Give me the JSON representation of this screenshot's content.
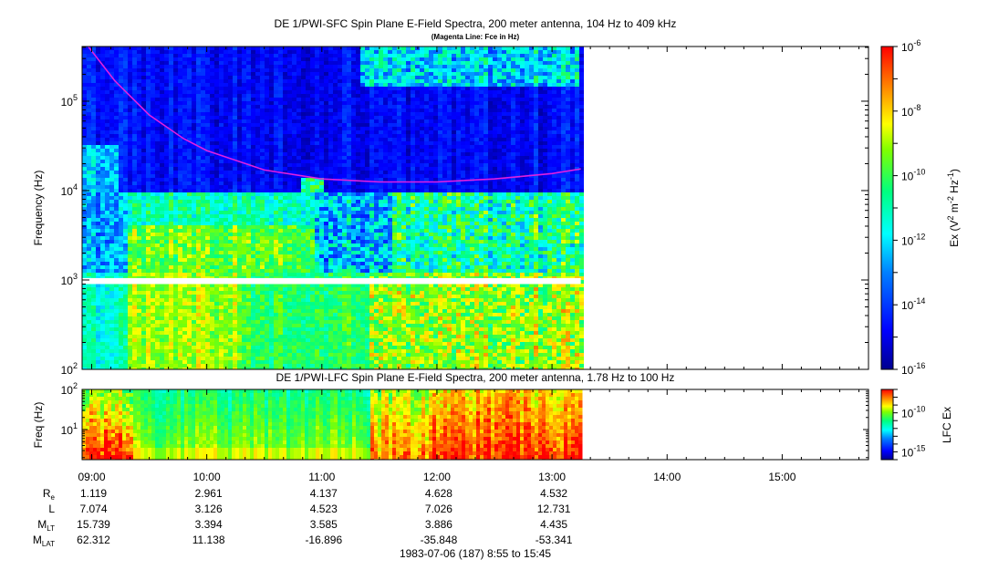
{
  "chart_data": [
    {
      "type": "heatmap",
      "title": "DE 1/PWI-SFC  Spin Plane E-Field Spectra, 200 meter antenna, 104 Hz to 409 kHz",
      "subtitle": "(Magenta Line: Fce in Hz)",
      "ylabel": "Frequency (Hz)",
      "yscale": "log",
      "ylim": [
        100,
        409000
      ],
      "yticks": [
        {
          "value": 100,
          "base": "10",
          "exp": "2"
        },
        {
          "value": 1000,
          "base": "10",
          "exp": "3"
        },
        {
          "value": 10000,
          "base": "10",
          "exp": "4"
        },
        {
          "value": 100000,
          "base": "10",
          "exp": "5"
        }
      ],
      "colorbar": {
        "label_prefix": "Ex (V",
        "label_sup1": "2",
        "label_mid": " m",
        "label_sup2": "-2",
        "label_mid2": " Hz",
        "label_sup3": "-1",
        "label_suffix": ")",
        "scale": "log",
        "range": [
          1e-16,
          1e-06
        ],
        "ticks": [
          {
            "value": 1e-06,
            "base": "10",
            "exp": "-6"
          },
          {
            "value": 1e-08,
            "base": "10",
            "exp": "-8"
          },
          {
            "value": 1e-10,
            "base": "10",
            "exp": "-10"
          },
          {
            "value": 1e-12,
            "base": "10",
            "exp": "-12"
          },
          {
            "value": 1e-14,
            "base": "10",
            "exp": "-14"
          },
          {
            "value": 1e-16,
            "base": "10",
            "exp": "-16"
          }
        ]
      },
      "data_gap_hz": [
        900,
        1050
      ],
      "data_end_time": "13:15",
      "fce_line": {
        "color": "#e020e0",
        "points": [
          [
            8.97,
            409000
          ],
          [
            9.2,
            170000
          ],
          [
            9.5,
            70000
          ],
          [
            9.8,
            38000
          ],
          [
            10.0,
            28000
          ],
          [
            10.5,
            17000
          ],
          [
            11.0,
            13500
          ],
          [
            11.5,
            12500
          ],
          [
            12.0,
            12500
          ],
          [
            12.5,
            13500
          ],
          [
            13.0,
            15500
          ],
          [
            13.25,
            17500
          ]
        ]
      }
    },
    {
      "type": "heatmap",
      "title": "DE 1/PWI-LFC  Spin Plane E-Field Spectra, 200 meter antenna, 1.78 Hz to 100 Hz",
      "ylabel": "Freq (Hz)",
      "yscale": "log",
      "ylim": [
        1.78,
        100
      ],
      "yticks": [
        {
          "value": 10,
          "base": "10",
          "exp": "1"
        },
        {
          "value": 100,
          "base": "10",
          "exp": "2"
        }
      ],
      "colorbar": {
        "label": "LFC Ex",
        "scale": "log",
        "range": [
          1e-16,
          1e-07
        ],
        "ticks": [
          {
            "value": 1e-10,
            "base": "10",
            "exp": "-10"
          },
          {
            "value": 1e-15,
            "base": "10",
            "exp": "-15"
          }
        ]
      },
      "data_end_time": "13:15"
    }
  ],
  "time_axis": {
    "range_hours": [
      8.9167,
      15.75
    ],
    "ticks": [
      {
        "hour": 9,
        "label": "09:00"
      },
      {
        "hour": 10,
        "label": "10:00"
      },
      {
        "hour": 11,
        "label": "11:00"
      },
      {
        "hour": 12,
        "label": "12:00"
      },
      {
        "hour": 13,
        "label": "13:00"
      },
      {
        "hour": 14,
        "label": "14:00"
      },
      {
        "hour": 15,
        "label": "15:00"
      }
    ],
    "footer": "1983-07-06 (187) 8:55 to 15:45"
  },
  "ephemeris": {
    "rows": [
      {
        "name_main": "R",
        "name_sub": "e",
        "values": [
          "1.119",
          "2.961",
          "4.137",
          "4.628",
          "4.532"
        ]
      },
      {
        "name_main": "L",
        "name_sub": "",
        "values": [
          "7.074",
          "3.126",
          "4.523",
          "7.026",
          "12.731"
        ]
      },
      {
        "name_main": "M",
        "name_sub": "LT",
        "values": [
          "15.739",
          "3.394",
          "3.585",
          "3.886",
          "4.435"
        ]
      },
      {
        "name_main": "M",
        "name_sub": "LAT",
        "values": [
          "62.312",
          "11.138",
          "-16.896",
          "-35.848",
          "-53.341"
        ]
      }
    ]
  }
}
